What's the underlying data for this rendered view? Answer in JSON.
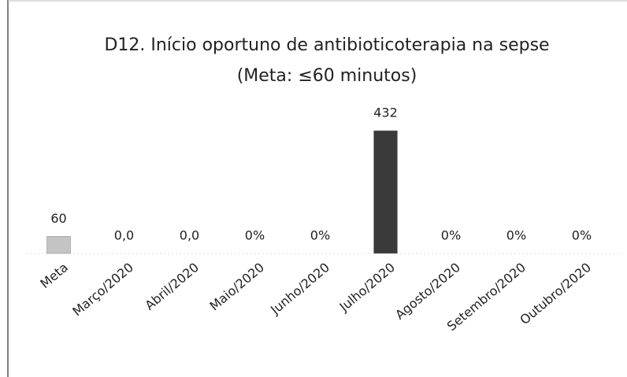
{
  "chart_data": {
    "type": "bar",
    "title": "D12. Início oportuno de antibioticoterapia na sepse",
    "subtitle": "(Meta: ≤60 minutos)",
    "categories": [
      "Meta",
      "Março/2020",
      "Abril/2020",
      "Maio/2020",
      "Junho/2020",
      "Julho/2020",
      "Agosto/2020",
      "Setembro/2020",
      "Outubro/2020"
    ],
    "values": [
      60,
      0,
      0,
      0,
      0,
      432,
      0,
      0,
      0
    ],
    "value_labels": [
      "60",
      "0,0",
      "0,0",
      "0%",
      "0%",
      "432",
      "0%",
      "0%",
      "0%"
    ],
    "colors": [
      "#c4c4c4",
      "#c4c4c4",
      "#c4c4c4",
      "#c4c4c4",
      "#c4c4c4",
      "#3a3a3a",
      "#c4c4c4",
      "#c4c4c4",
      "#c4c4c4"
    ]
  }
}
